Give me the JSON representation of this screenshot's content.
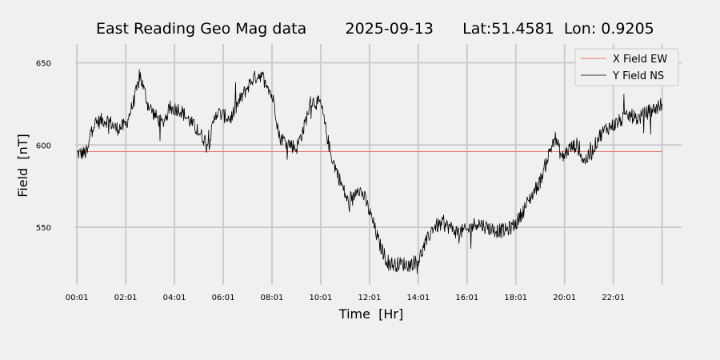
{
  "chart_data": {
    "type": "line",
    "title": "East Reading Geo Mag data        2025-09-13      Lat:51.4581  Lon: 0.9205",
    "xlabel": "Time  [Hr]",
    "ylabel": "Field  [nT]",
    "x_tick_labels": [
      "00:01",
      "02:01",
      "04:01",
      "06:01",
      "08:01",
      "10:01",
      "12:01",
      "14:01",
      "16:01",
      "18:01",
      "20:01",
      "22:01"
    ],
    "y_ticks": [
      550,
      600,
      650
    ],
    "xlim": [
      -0.4,
      24.8
    ],
    "ylim": [
      515,
      660
    ],
    "grid": true,
    "legend_position": "top-right",
    "series": [
      {
        "name": "X Field EW",
        "color": "#e8776e",
        "x": [
          0,
          24
        ],
        "y": [
          596,
          596
        ]
      },
      {
        "name": "Y Field NS",
        "color": "#000000",
        "x": [
          0,
          0.3,
          0.45,
          0.6,
          1.0,
          1.3,
          1.6,
          2.0,
          2.3,
          2.6,
          2.9,
          3.2,
          3.5,
          3.8,
          4.2,
          4.6,
          5.0,
          5.4,
          5.7,
          6.0,
          6.3,
          6.6,
          6.9,
          7.2,
          7.5,
          7.8,
          8.1,
          8.3,
          8.6,
          9.0,
          9.3,
          9.6,
          10.0,
          10.4,
          10.8,
          11.2,
          11.5,
          11.8,
          12.1,
          12.4,
          12.7,
          13.0,
          13.3,
          13.6,
          14.0,
          14.3,
          14.6,
          15.0,
          15.3,
          15.6,
          16.0,
          16.4,
          16.8,
          17.2,
          17.6,
          18.0,
          18.3,
          18.6,
          19.0,
          19.3,
          19.6,
          19.9,
          20.2,
          20.5,
          20.8,
          21.1,
          21.4,
          21.7,
          22.0,
          22.3,
          22.7,
          23.0,
          23.4,
          23.7,
          24.0
        ],
        "y": [
          595,
          595,
          596,
          612,
          615,
          615,
          610,
          612,
          625,
          642,
          625,
          618,
          613,
          622,
          622,
          615,
          608,
          600,
          620,
          618,
          616,
          625,
          633,
          640,
          643,
          638,
          625,
          605,
          602,
          598,
          610,
          627,
          625,
          595,
          578,
          562,
          575,
          568,
          555,
          540,
          530,
          527,
          528,
          527,
          530,
          540,
          550,
          552,
          550,
          547,
          548,
          553,
          550,
          548,
          548,
          552,
          560,
          568,
          578,
          592,
          605,
          592,
          598,
          600,
          590,
          595,
          605,
          610,
          612,
          615,
          618,
          616,
          620,
          622,
          625
        ]
      }
    ]
  }
}
